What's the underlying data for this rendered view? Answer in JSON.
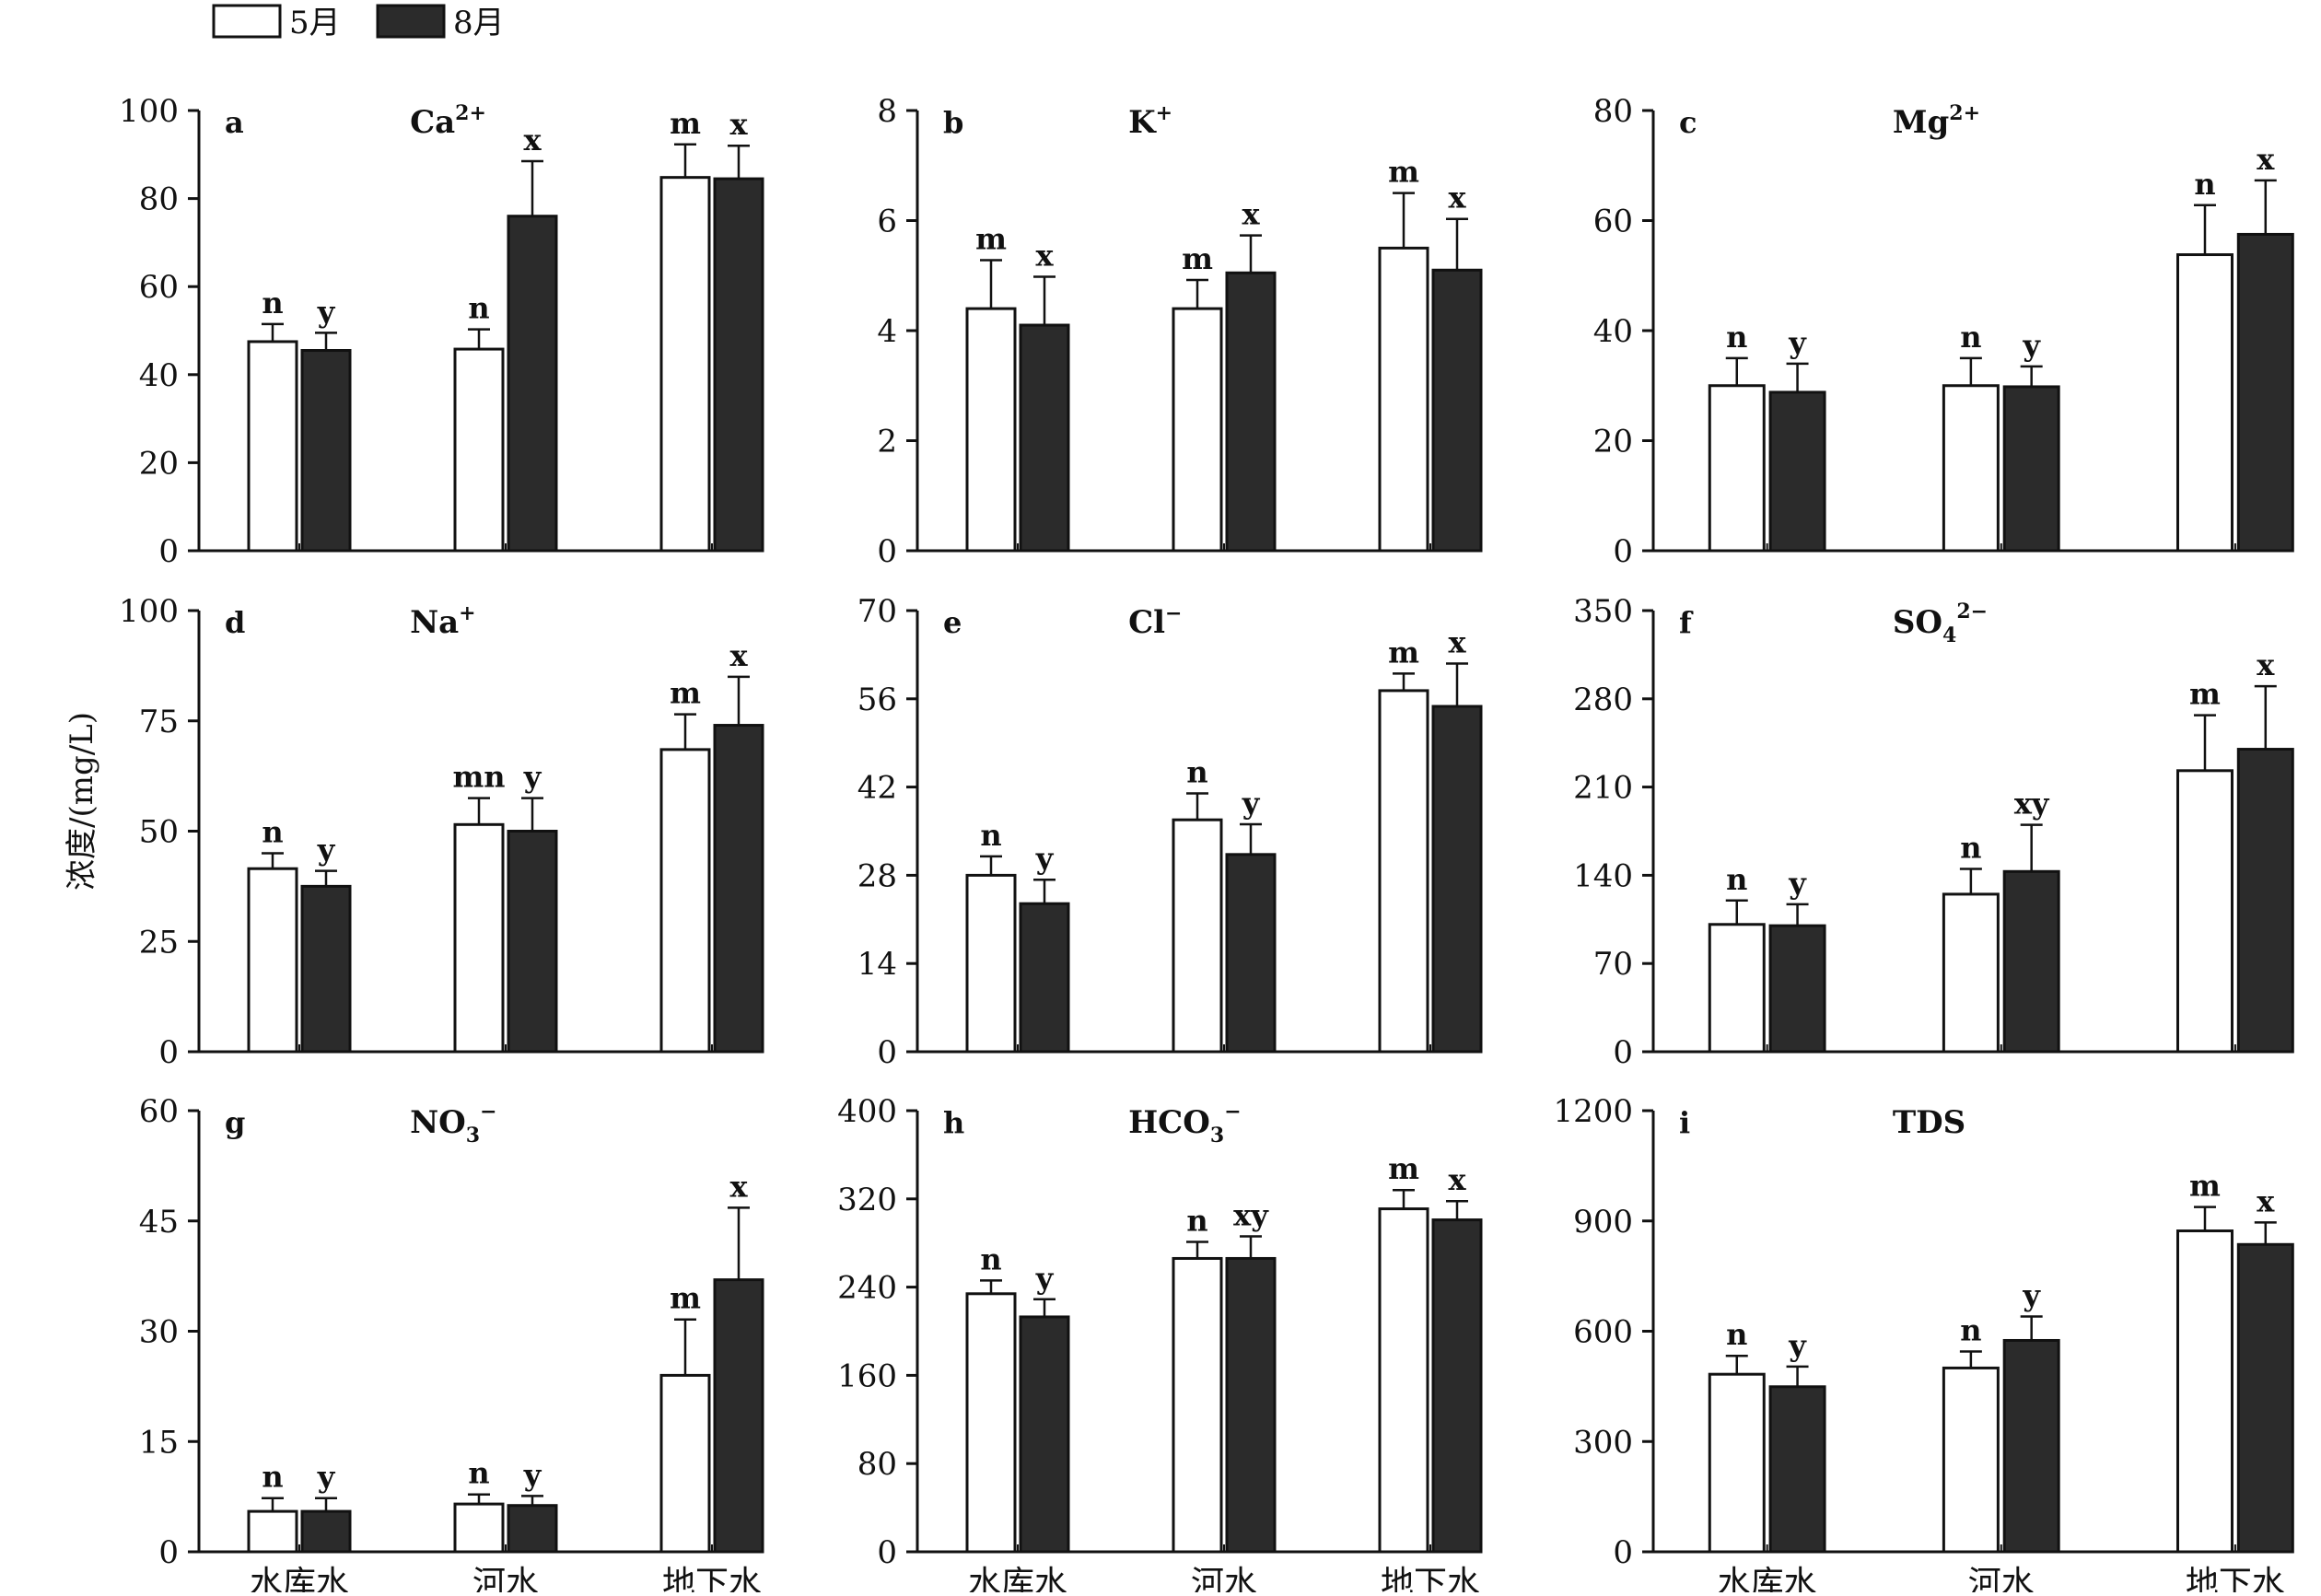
{
  "figure": {
    "ylabel": "浓度/(mg/L)",
    "legend": [
      {
        "label": "5月",
        "fill": "#ffffff"
      },
      {
        "label": "8月",
        "fill": "#2b2b2b"
      }
    ],
    "categories": [
      "水库水",
      "河水",
      "地下水"
    ],
    "colors": {
      "may_fill": "#ffffff",
      "aug_fill": "#2b2b2b",
      "stroke": "#111111"
    }
  },
  "chart_data": [
    {
      "type": "bar",
      "panel_letter": "a",
      "title_main": "Ca",
      "title_sup": "2+",
      "title_sub": "",
      "categories": [
        "水库水",
        "河水",
        "地下水"
      ],
      "ylim": [
        0,
        100
      ],
      "yticks": [
        0,
        20,
        40,
        60,
        80,
        100
      ],
      "series": [
        {
          "name": "5月",
          "values": [
            47.5,
            45.8,
            84.8
          ],
          "errors": [
            4,
            4.5,
            7.5
          ],
          "letters": [
            "n",
            "n",
            "m"
          ]
        },
        {
          "name": "8月",
          "values": [
            45.5,
            76,
            84.5
          ],
          "errors": [
            4,
            12.5,
            7.5
          ],
          "letters": [
            "y",
            "x",
            "x"
          ]
        }
      ]
    },
    {
      "type": "bar",
      "panel_letter": "b",
      "title_main": "K",
      "title_sup": "+",
      "title_sub": "",
      "categories": [
        "水库水",
        "河水",
        "地下水"
      ],
      "ylim": [
        0,
        8
      ],
      "yticks": [
        0,
        2,
        4,
        6,
        8
      ],
      "series": [
        {
          "name": "5月",
          "values": [
            4.4,
            4.4,
            5.5
          ],
          "errors": [
            0.88,
            0.52,
            1.0
          ],
          "letters": [
            "m",
            "m",
            "m"
          ]
        },
        {
          "name": "8月",
          "values": [
            4.1,
            5.05,
            5.1
          ],
          "errors": [
            0.88,
            0.68,
            0.93
          ],
          "letters": [
            "x",
            "x",
            "x"
          ]
        }
      ]
    },
    {
      "type": "bar",
      "panel_letter": "c",
      "title_main": "Mg",
      "title_sup": "2+",
      "title_sub": "",
      "categories": [
        "水库水",
        "河水",
        "地下水"
      ],
      "ylim": [
        0,
        80
      ],
      "yticks": [
        0,
        20,
        40,
        60,
        80
      ],
      "series": [
        {
          "name": "5月",
          "values": [
            30,
            30,
            53.8
          ],
          "errors": [
            5,
            5,
            9
          ],
          "letters": [
            "n",
            "n",
            "n"
          ]
        },
        {
          "name": "8月",
          "values": [
            28.8,
            29.8,
            57.5
          ],
          "errors": [
            5.2,
            3.7,
            9.8
          ],
          "letters": [
            "y",
            "y",
            "x"
          ]
        }
      ]
    },
    {
      "type": "bar",
      "panel_letter": "d",
      "title_main": "Na",
      "title_sup": "+",
      "title_sub": "",
      "categories": [
        "水库水",
        "河水",
        "地下水"
      ],
      "ylim": [
        0,
        100
      ],
      "yticks": [
        0,
        25,
        50,
        75,
        100
      ],
      "series": [
        {
          "name": "5月",
          "values": [
            41.5,
            51.5,
            68.5
          ],
          "errors": [
            3.5,
            6,
            8
          ],
          "letters": [
            "n",
            "mn",
            "m"
          ]
        },
        {
          "name": "8月",
          "values": [
            37.5,
            50,
            74
          ],
          "errors": [
            3.5,
            7.5,
            11
          ],
          "letters": [
            "y",
            "y",
            "x"
          ]
        }
      ]
    },
    {
      "type": "bar",
      "panel_letter": "e",
      "title_main": "Cl",
      "title_sup": "−",
      "title_sub": "",
      "categories": [
        "水库水",
        "河水",
        "地下水"
      ],
      "ylim": [
        0,
        70
      ],
      "yticks": [
        0,
        14,
        28,
        42,
        56,
        70
      ],
      "series": [
        {
          "name": "5月",
          "values": [
            28,
            36.8,
            57.3
          ],
          "errors": [
            3,
            4.2,
            2.7
          ],
          "letters": [
            "n",
            "n",
            "m"
          ]
        },
        {
          "name": "8月",
          "values": [
            23.5,
            31.3,
            54.8
          ],
          "errors": [
            3.8,
            4.8,
            6.8
          ],
          "letters": [
            "y",
            "y",
            "x"
          ]
        }
      ]
    },
    {
      "type": "bar",
      "panel_letter": "f",
      "title_main": "SO",
      "title_sup": "2−",
      "title_sub": "4",
      "categories": [
        "水库水",
        "河水",
        "地下水"
      ],
      "ylim": [
        0,
        350
      ],
      "yticks": [
        0,
        70,
        140,
        210,
        280,
        350
      ],
      "series": [
        {
          "name": "5月",
          "values": [
            101,
            125,
            223
          ],
          "errors": [
            19,
            20,
            44
          ],
          "letters": [
            "n",
            "n",
            "m"
          ]
        },
        {
          "name": "8月",
          "values": [
            100,
            143,
            240
          ],
          "errors": [
            17,
            37,
            50
          ],
          "letters": [
            "y",
            "xy",
            "x"
          ]
        }
      ]
    },
    {
      "type": "bar",
      "panel_letter": "g",
      "title_main": "NO",
      "title_sup": "−",
      "title_sub": "3",
      "categories": [
        "水库水",
        "河水",
        "地下水"
      ],
      "ylim": [
        0,
        60
      ],
      "yticks": [
        0,
        15,
        30,
        45,
        60
      ],
      "series": [
        {
          "name": "5月",
          "values": [
            5.5,
            6.5,
            24
          ],
          "errors": [
            1.8,
            1.3,
            7.6
          ],
          "letters": [
            "n",
            "n",
            "m"
          ]
        },
        {
          "name": "8月",
          "values": [
            5.5,
            6.3,
            37
          ],
          "errors": [
            1.8,
            1.3,
            9.8
          ],
          "letters": [
            "y",
            "y",
            "x"
          ]
        }
      ]
    },
    {
      "type": "bar",
      "panel_letter": "h",
      "title_main": "HCO",
      "title_sup": "−",
      "title_sub": "3",
      "categories": [
        "水库水",
        "河水",
        "地下水"
      ],
      "ylim": [
        0,
        400
      ],
      "yticks": [
        0,
        80,
        160,
        240,
        320,
        400
      ],
      "series": [
        {
          "name": "5月",
          "values": [
            234,
            266,
            311
          ],
          "errors": [
            12,
            15,
            17
          ],
          "letters": [
            "n",
            "n",
            "m"
          ]
        },
        {
          "name": "8月",
          "values": [
            213,
            266,
            301
          ],
          "errors": [
            16,
            20,
            17
          ],
          "letters": [
            "y",
            "xy",
            "x"
          ]
        }
      ]
    },
    {
      "type": "bar",
      "panel_letter": "i",
      "title_main": "TDS",
      "title_sup": "",
      "title_sub": "",
      "categories": [
        "水库水",
        "河水",
        "地下水"
      ],
      "ylim": [
        0,
        1200
      ],
      "yticks": [
        0,
        300,
        600,
        900,
        1200
      ],
      "series": [
        {
          "name": "5月",
          "values": [
            483,
            500,
            873
          ],
          "errors": [
            50,
            45,
            65
          ],
          "letters": [
            "n",
            "n",
            "m"
          ]
        },
        {
          "name": "8月",
          "values": [
            449,
            575,
            836
          ],
          "errors": [
            55,
            65,
            60
          ],
          "letters": [
            "y",
            "y",
            "x"
          ]
        }
      ]
    }
  ]
}
